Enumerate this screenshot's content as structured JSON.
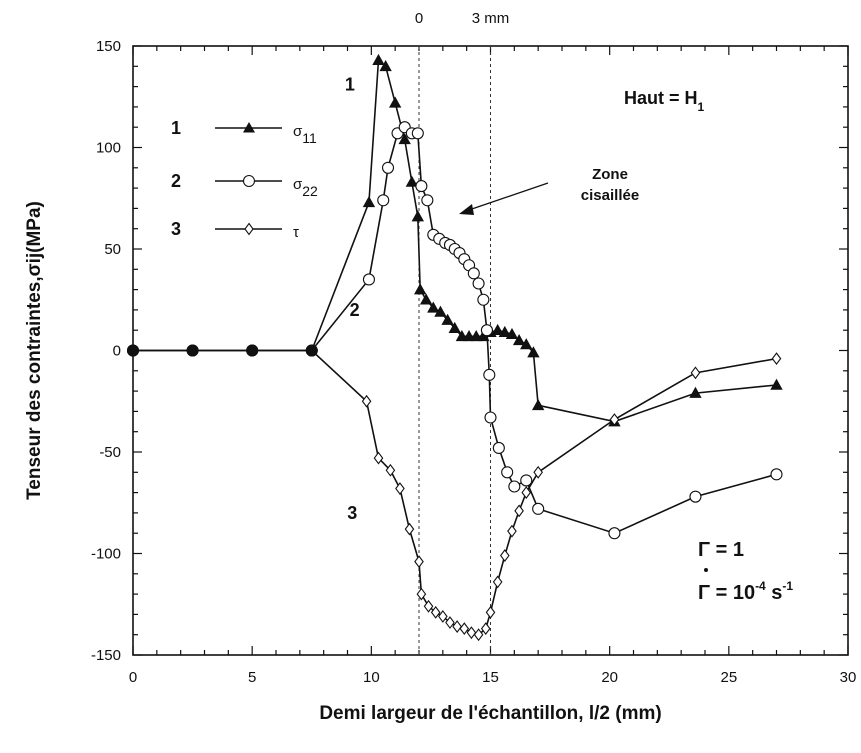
{
  "chart_data": {
    "type": "line",
    "xlabel": "Demi largeur de l'échantillon, l/2 (mm)",
    "ylabel": "Tenseur des contraintes,σij(MPa)",
    "xlim": [
      0,
      30
    ],
    "ylim": [
      -150,
      150
    ],
    "x_ticks": [
      0,
      5,
      10,
      15,
      20,
      25,
      30
    ],
    "y_ticks": [
      150,
      100,
      50,
      0,
      -50,
      -100,
      -150
    ],
    "grid": false,
    "top_axis": {
      "labels": [
        {
          "text": "0",
          "x": 12
        },
        {
          "text": "3 mm",
          "x": 15
        }
      ]
    },
    "reference_lines": [
      {
        "x": 12,
        "style": "dashed"
      },
      {
        "x": 15,
        "style": "dashed"
      }
    ],
    "legend": {
      "placement": "top-left",
      "entries": [
        {
          "number": "1",
          "symbol": "σ",
          "subscript": "11",
          "marker": "triangle"
        },
        {
          "number": "2",
          "symbol": "σ",
          "subscript": "22",
          "marker": "circle"
        },
        {
          "number": "3",
          "symbol": "τ",
          "subscript": "",
          "marker": "diamond"
        }
      ]
    },
    "annotations": {
      "condition_title": "Haut = H",
      "condition_sub": "1",
      "zone_line1": "Zone",
      "zone_line2": "cisaillée",
      "gamma_line": "Γ = 1",
      "gamma_dot_prefix": "Γ = 10",
      "gamma_dot_exp": "-4",
      "gamma_dot_unit": " s",
      "gamma_dot_unit_exp": "-1"
    },
    "curve_labels": [
      {
        "text": "1",
        "series": "σ11",
        "x": 9.1,
        "y": 128
      },
      {
        "text": "2",
        "series": "σ22",
        "x": 9.3,
        "y": 17
      },
      {
        "text": "3",
        "series": "τ",
        "x": 9.2,
        "y": -83
      }
    ],
    "series": [
      {
        "name": "σ11",
        "marker": "triangle",
        "points": [
          [
            0,
            0
          ],
          [
            2.5,
            0
          ],
          [
            5,
            0
          ],
          [
            7.5,
            0
          ],
          [
            9.9,
            73
          ],
          [
            10.3,
            143
          ],
          [
            10.6,
            140
          ],
          [
            11.0,
            122
          ],
          [
            11.4,
            104
          ],
          [
            11.7,
            83
          ],
          [
            11.95,
            66
          ],
          [
            12.05,
            30
          ],
          [
            12.3,
            25
          ],
          [
            12.6,
            21
          ],
          [
            12.9,
            19
          ],
          [
            13.2,
            15
          ],
          [
            13.5,
            11
          ],
          [
            13.8,
            7
          ],
          [
            14.1,
            7
          ],
          [
            14.4,
            7
          ],
          [
            14.7,
            7
          ],
          [
            15.0,
            9
          ],
          [
            15.3,
            10
          ],
          [
            15.6,
            9
          ],
          [
            15.9,
            8
          ],
          [
            16.2,
            5
          ],
          [
            16.5,
            3
          ],
          [
            16.8,
            -1
          ],
          [
            17.0,
            -27
          ],
          [
            20.2,
            -35
          ],
          [
            23.6,
            -21
          ],
          [
            27.0,
            -17
          ]
        ]
      },
      {
        "name": "σ22",
        "marker": "circle",
        "points": [
          [
            0,
            0
          ],
          [
            2.5,
            0
          ],
          [
            5,
            0
          ],
          [
            7.5,
            0
          ],
          [
            9.9,
            35
          ],
          [
            10.5,
            74
          ],
          [
            10.7,
            90
          ],
          [
            11.1,
            107
          ],
          [
            11.4,
            110
          ],
          [
            11.7,
            107
          ],
          [
            11.95,
            107
          ],
          [
            12.1,
            81
          ],
          [
            12.35,
            74
          ],
          [
            12.6,
            57
          ],
          [
            12.85,
            55
          ],
          [
            13.1,
            53
          ],
          [
            13.3,
            52
          ],
          [
            13.5,
            50
          ],
          [
            13.7,
            48
          ],
          [
            13.9,
            45
          ],
          [
            14.1,
            42
          ],
          [
            14.3,
            38
          ],
          [
            14.5,
            33
          ],
          [
            14.7,
            25
          ],
          [
            14.85,
            10
          ],
          [
            14.95,
            -12
          ],
          [
            15.0,
            -33
          ],
          [
            15.35,
            -48
          ],
          [
            15.7,
            -60
          ],
          [
            16.0,
            -67
          ],
          [
            16.5,
            -64
          ],
          [
            17.0,
            -78
          ],
          [
            20.2,
            -90
          ],
          [
            23.6,
            -72
          ],
          [
            27.0,
            -61
          ]
        ]
      },
      {
        "name": "τ",
        "marker": "diamond",
        "points": [
          [
            0,
            0
          ],
          [
            2.5,
            0
          ],
          [
            5,
            0
          ],
          [
            7.5,
            0
          ],
          [
            9.8,
            -25
          ],
          [
            10.3,
            -53
          ],
          [
            10.8,
            -59
          ],
          [
            11.2,
            -68
          ],
          [
            11.6,
            -88
          ],
          [
            12.0,
            -104
          ],
          [
            12.1,
            -120
          ],
          [
            12.4,
            -126
          ],
          [
            12.7,
            -129
          ],
          [
            13.0,
            -131
          ],
          [
            13.3,
            -134
          ],
          [
            13.6,
            -136
          ],
          [
            13.9,
            -137
          ],
          [
            14.2,
            -139
          ],
          [
            14.5,
            -140
          ],
          [
            14.8,
            -137
          ],
          [
            15.0,
            -129
          ],
          [
            15.3,
            -114
          ],
          [
            15.6,
            -101
          ],
          [
            15.9,
            -89
          ],
          [
            16.2,
            -79
          ],
          [
            16.5,
            -70
          ],
          [
            17.0,
            -60
          ],
          [
            20.2,
            -34
          ],
          [
            23.6,
            -11
          ],
          [
            27.0,
            -4
          ]
        ]
      }
    ]
  }
}
